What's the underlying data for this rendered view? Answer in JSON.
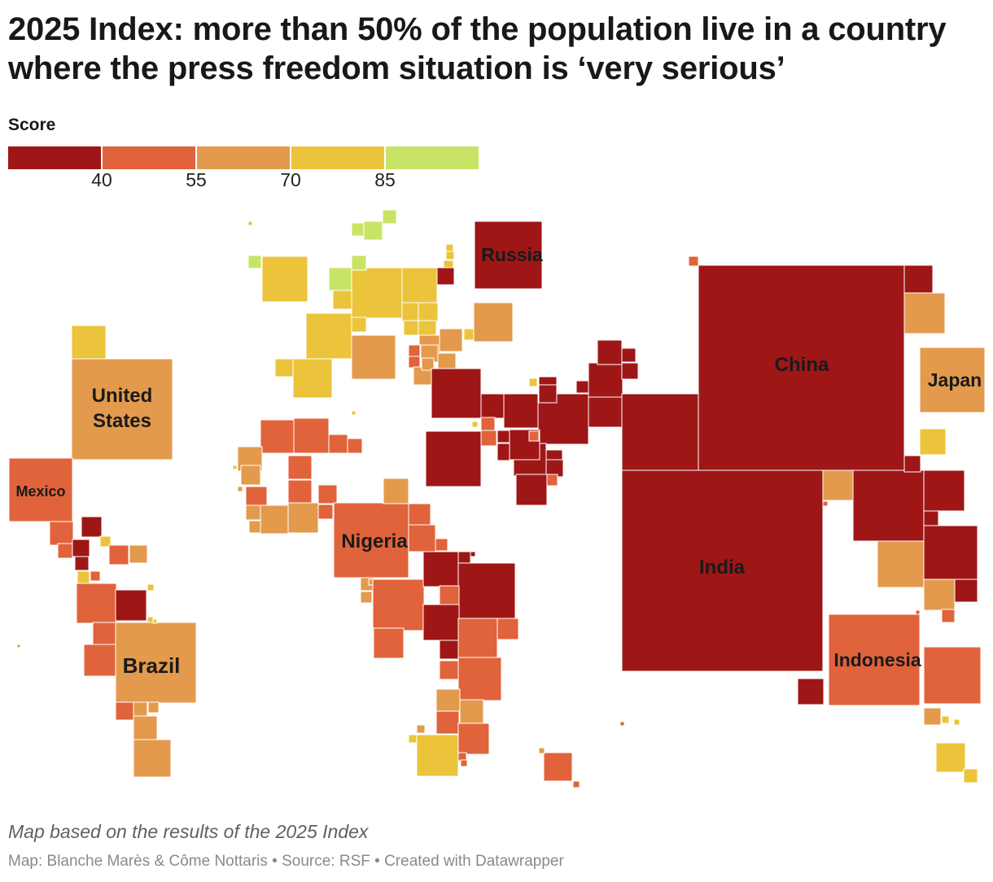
{
  "title": "2025 Index: more than 50% of the population live in a country where the press freedom situation is ‘very serious’",
  "legend": {
    "title": "Score",
    "bins": [
      {
        "min": 0,
        "max": 40,
        "color": "#9f1617"
      },
      {
        "min": 40,
        "max": 55,
        "color": "#e0633b"
      },
      {
        "min": 55,
        "max": 70,
        "color": "#e39a4d"
      },
      {
        "min": 70,
        "max": 85,
        "color": "#ebc43c"
      },
      {
        "min": 85,
        "max": 100,
        "color": "#c8e466"
      }
    ],
    "ticks": [
      "40",
      "55",
      "70",
      "85"
    ]
  },
  "labels": {
    "russia": "Russia",
    "china": "China",
    "japan": "Japan",
    "united_states": [
      "United",
      "States"
    ],
    "mexico": "Mexico",
    "nigeria": "Nigeria",
    "india": "India",
    "brazil": "Brazil",
    "indonesia": "Indonesia"
  },
  "notes": "Map based on the results of the 2025 Index",
  "footer": "Map: Blanche Marès & Côme Nottaris • Source: RSF • Created with Datawrapper"
}
